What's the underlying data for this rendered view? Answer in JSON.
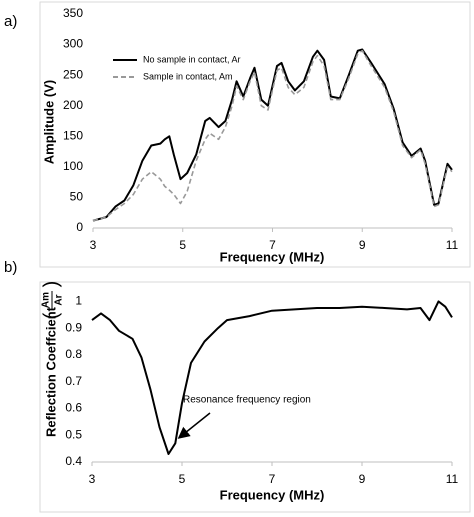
{
  "chart_data": [
    {
      "type": "line",
      "panel_label": "a)",
      "xlabel": "Frequency (MHz)",
      "ylabel": "Amplitude (V)",
      "xlim": [
        3,
        11
      ],
      "xticks": [
        3,
        5,
        7,
        9,
        11
      ],
      "ylim": [
        0,
        350
      ],
      "yticks": [
        0,
        50,
        100,
        150,
        200,
        250,
        300,
        350
      ],
      "legend": "upper left",
      "x": [
        3.0,
        3.3,
        3.5,
        3.7,
        3.9,
        4.1,
        4.3,
        4.5,
        4.6,
        4.7,
        4.8,
        4.95,
        5.1,
        5.3,
        5.5,
        5.6,
        5.8,
        5.95,
        6.1,
        6.2,
        6.35,
        6.5,
        6.6,
        6.75,
        6.9,
        7.1,
        7.2,
        7.35,
        7.5,
        7.7,
        7.9,
        8.0,
        8.15,
        8.3,
        8.5,
        8.7,
        8.9,
        9.0,
        9.2,
        9.5,
        9.7,
        9.9,
        10.1,
        10.3,
        10.4,
        10.6,
        10.7,
        10.9,
        11.0
      ],
      "series": [
        {
          "name": "No sample in contact, Ar",
          "color": "#000000",
          "dash": "solid",
          "values": [
            12,
            18,
            35,
            45,
            70,
            110,
            135,
            138,
            145,
            150,
            120,
            80,
            90,
            120,
            175,
            180,
            165,
            175,
            210,
            240,
            215,
            245,
            262,
            210,
            200,
            265,
            270,
            240,
            225,
            240,
            280,
            290,
            275,
            215,
            212,
            250,
            290,
            292,
            270,
            235,
            195,
            140,
            118,
            130,
            110,
            38,
            40,
            105,
            95
          ]
        },
        {
          "name": "Sample in contact, Am",
          "color": "#999999",
          "dash": "dashed",
          "values": [
            12,
            18,
            30,
            40,
            55,
            80,
            92,
            80,
            68,
            62,
            55,
            40,
            60,
            110,
            145,
            155,
            145,
            165,
            200,
            232,
            210,
            240,
            255,
            200,
            193,
            258,
            262,
            230,
            218,
            230,
            272,
            282,
            265,
            210,
            210,
            245,
            285,
            290,
            265,
            230,
            190,
            135,
            115,
            128,
            105,
            35,
            38,
            100,
            92
          ]
        }
      ]
    },
    {
      "type": "line",
      "panel_label": "b)",
      "xlabel": "Frequency (MHz)",
      "ylabel": "Reflection Coeffcient",
      "ylabel_fraction": {
        "numerator": "Am",
        "denominator": "Ar"
      },
      "xlim": [
        3,
        11
      ],
      "xticks": [
        3,
        5,
        7,
        9,
        11
      ],
      "ylim": [
        0.4,
        1.02
      ],
      "yticks": [
        0.4,
        0.5,
        0.6,
        0.7,
        0.8,
        0.9,
        1
      ],
      "annotation": "Resonance frequency region",
      "x": [
        3.0,
        3.2,
        3.4,
        3.6,
        3.9,
        4.1,
        4.3,
        4.5,
        4.7,
        4.85,
        5.0,
        5.2,
        5.5,
        5.8,
        6.0,
        6.5,
        7.0,
        7.5,
        8.0,
        8.5,
        9.0,
        9.5,
        10.0,
        10.3,
        10.5,
        10.7,
        10.85,
        11.0
      ],
      "series": [
        {
          "name": null,
          "color": "#000000",
          "dash": "solid",
          "values": [
            0.93,
            0.955,
            0.93,
            0.89,
            0.86,
            0.79,
            0.67,
            0.53,
            0.43,
            0.47,
            0.62,
            0.77,
            0.85,
            0.9,
            0.93,
            0.945,
            0.965,
            0.97,
            0.975,
            0.975,
            0.98,
            0.975,
            0.97,
            0.975,
            0.93,
            1.0,
            0.98,
            0.94
          ]
        }
      ]
    }
  ]
}
